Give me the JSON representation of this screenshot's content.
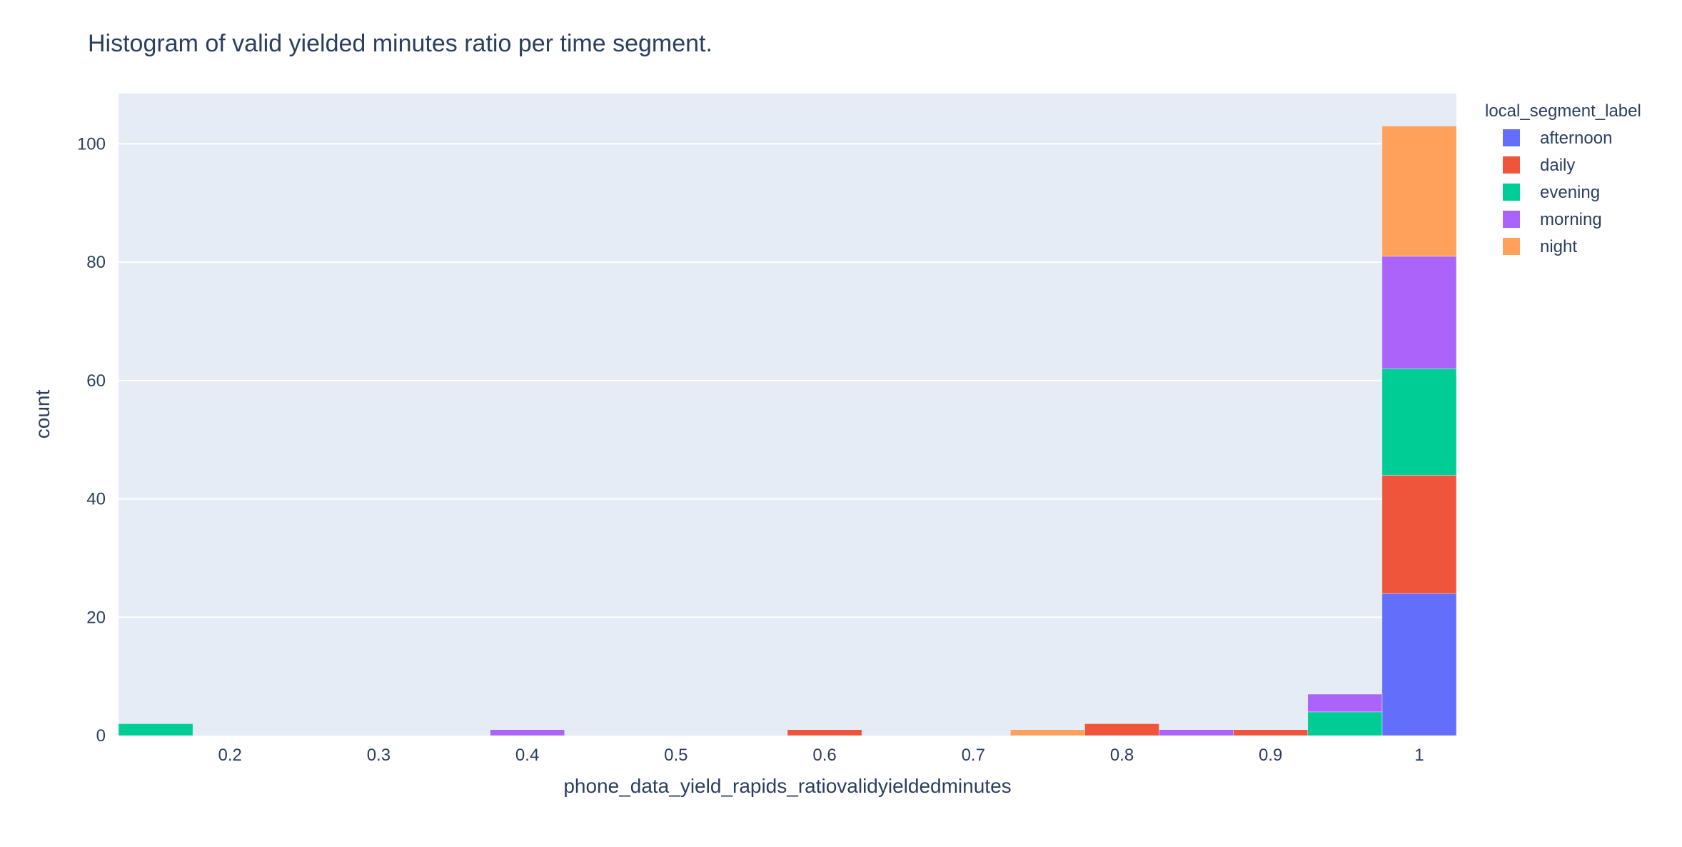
{
  "chart_data": {
    "type": "bar",
    "subtype": "stacked-histogram",
    "title": "Histogram of valid yielded minutes ratio per time segment.",
    "xlabel": "phone_data_yield_rapids_ratiovalidyieldedminutes",
    "ylabel": "count",
    "xlim": [
      0.125,
      1.025
    ],
    "ylim": [
      0,
      108.5
    ],
    "bin_width": 0.05,
    "x_ticks": [
      0.2,
      0.3,
      0.4,
      0.5,
      0.6,
      0.7,
      0.8,
      0.9,
      1
    ],
    "x_tick_labels": [
      "0.2",
      "0.3",
      "0.4",
      "0.5",
      "0.6",
      "0.7",
      "0.8",
      "0.9",
      "1"
    ],
    "y_ticks": [
      0,
      20,
      40,
      60,
      80,
      100
    ],
    "y_tick_labels": [
      "0",
      "20",
      "40",
      "60",
      "80",
      "100"
    ],
    "grid": true,
    "plot_background": "#e5ecf6",
    "legend_title": "local_segment_label",
    "legend_position": "top-right",
    "series": [
      {
        "name": "afternoon",
        "color": "#636efa",
        "bins": [
          {
            "x0": 0.975,
            "x1": 1.025,
            "count": 24
          }
        ]
      },
      {
        "name": "daily",
        "color": "#ef553b",
        "bins": [
          {
            "x0": 0.575,
            "x1": 0.625,
            "count": 1
          },
          {
            "x0": 0.775,
            "x1": 0.825,
            "count": 2
          },
          {
            "x0": 0.875,
            "x1": 0.925,
            "count": 1
          },
          {
            "x0": 0.975,
            "x1": 1.025,
            "count": 20
          }
        ]
      },
      {
        "name": "evening",
        "color": "#00cc96",
        "bins": [
          {
            "x0": 0.125,
            "x1": 0.175,
            "count": 2
          },
          {
            "x0": 0.925,
            "x1": 0.975,
            "count": 4
          },
          {
            "x0": 0.975,
            "x1": 1.025,
            "count": 18
          }
        ]
      },
      {
        "name": "morning",
        "color": "#ab63fa",
        "bins": [
          {
            "x0": 0.375,
            "x1": 0.425,
            "count": 1
          },
          {
            "x0": 0.825,
            "x1": 0.875,
            "count": 1
          },
          {
            "x0": 0.925,
            "x1": 0.975,
            "count": 3
          },
          {
            "x0": 0.975,
            "x1": 1.025,
            "count": 19
          }
        ]
      },
      {
        "name": "night",
        "color": "#ffa15a",
        "bins": [
          {
            "x0": 0.725,
            "x1": 0.775,
            "count": 1
          },
          {
            "x0": 0.975,
            "x1": 1.025,
            "count": 22
          }
        ]
      }
    ]
  }
}
